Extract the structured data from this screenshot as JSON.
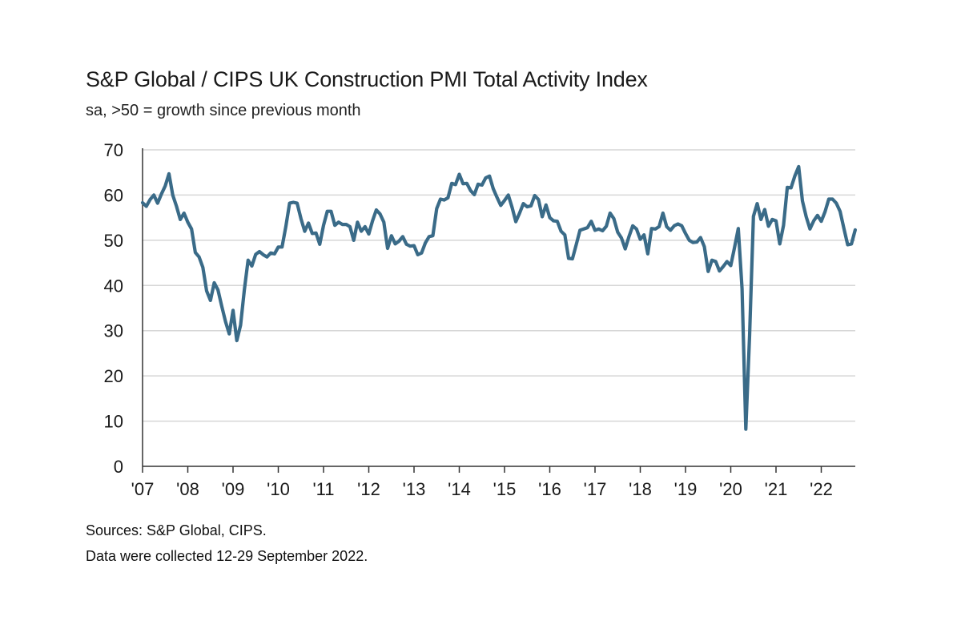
{
  "chart_data": {
    "type": "line",
    "title": "S&P Global / CIPS UK Construction PMI Total Activity Index",
    "subtitle": "sa, >50 = growth since previous month",
    "xlabel": "",
    "ylabel": "",
    "ylim": [
      0,
      70
    ],
    "yticks": [
      "0",
      "10",
      "20",
      "30",
      "40",
      "50",
      "60",
      "70"
    ],
    "xticks": [
      "'07",
      "'08",
      "'09",
      "'10",
      "'11",
      "'12",
      "'13",
      "'14",
      "'15",
      "'16",
      "'17",
      "'18",
      "'19",
      "'20",
      "'21",
      "'22"
    ],
    "x_start_year": 2007,
    "grid": "horizontal",
    "line_color": "#3a6b88",
    "series": [
      {
        "values": [
          58.3,
          57.5,
          59.0,
          60.0,
          58.2,
          60.2,
          62.0,
          64.7,
          60.0,
          57.5,
          54.6,
          56.0,
          54.0,
          52.5,
          47.3,
          46.3,
          44.0,
          38.8,
          36.7,
          40.6,
          39.0,
          35.4,
          32.0,
          29.3,
          34.5,
          27.8,
          31.2,
          39.0,
          45.6,
          44.3,
          46.9,
          47.5,
          46.8,
          46.3,
          47.2,
          47.0,
          48.5,
          48.5,
          53.0,
          58.2,
          58.4,
          58.2,
          54.8,
          52.0,
          53.8,
          51.5,
          51.6,
          49.1,
          53.3,
          56.4,
          56.4,
          53.3,
          54.0,
          53.5,
          53.5,
          53.0,
          50.0,
          54.0,
          52.0,
          53.0,
          51.4,
          54.3,
          56.7,
          55.8,
          54.0,
          48.2,
          51.0,
          49.2,
          49.8,
          50.8,
          49.1,
          48.7,
          48.8,
          46.8,
          47.2,
          49.4,
          50.8,
          51.0,
          57.0,
          59.1,
          58.9,
          59.4,
          62.6,
          62.3,
          64.6,
          62.5,
          62.6,
          61.0,
          60.1,
          62.4,
          62.2,
          63.8,
          64.2,
          61.4,
          59.5,
          57.7,
          58.8,
          60.0,
          57.3,
          54.1,
          56.0,
          58.1,
          57.4,
          57.6,
          59.9,
          59.0,
          55.2,
          57.8,
          55.0,
          54.3,
          54.2,
          52.0,
          51.2,
          46.0,
          45.9,
          49.0,
          52.2,
          52.5,
          52.8,
          54.2,
          52.2,
          52.5,
          52.1,
          53.1,
          56.0,
          54.8,
          51.8,
          50.5,
          48.1,
          50.8,
          53.2,
          52.5,
          50.2,
          51.2,
          47.0,
          52.6,
          52.5,
          53.0,
          56.0,
          53.0,
          52.2,
          53.2,
          53.6,
          53.2,
          51.5,
          50.0,
          49.5,
          49.6,
          50.6,
          48.6,
          43.1,
          45.6,
          45.3,
          43.2,
          44.2,
          45.3,
          44.4,
          48.4,
          52.6,
          39.3,
          8.2,
          28.9,
          55.3,
          58.1,
          54.6,
          56.8,
          53.1,
          54.6,
          54.3,
          49.2,
          53.3,
          61.7,
          61.6,
          64.2,
          66.3,
          58.7,
          55.2,
          52.5,
          54.3,
          55.5,
          54.2,
          56.3,
          59.1,
          59.1,
          58.2,
          56.4,
          52.6,
          49.0,
          49.2,
          52.3
        ]
      }
    ]
  },
  "footer": {
    "sources": "Sources: S&P Global, CIPS.",
    "collected": "Data were collected 12-29 September 2022."
  }
}
